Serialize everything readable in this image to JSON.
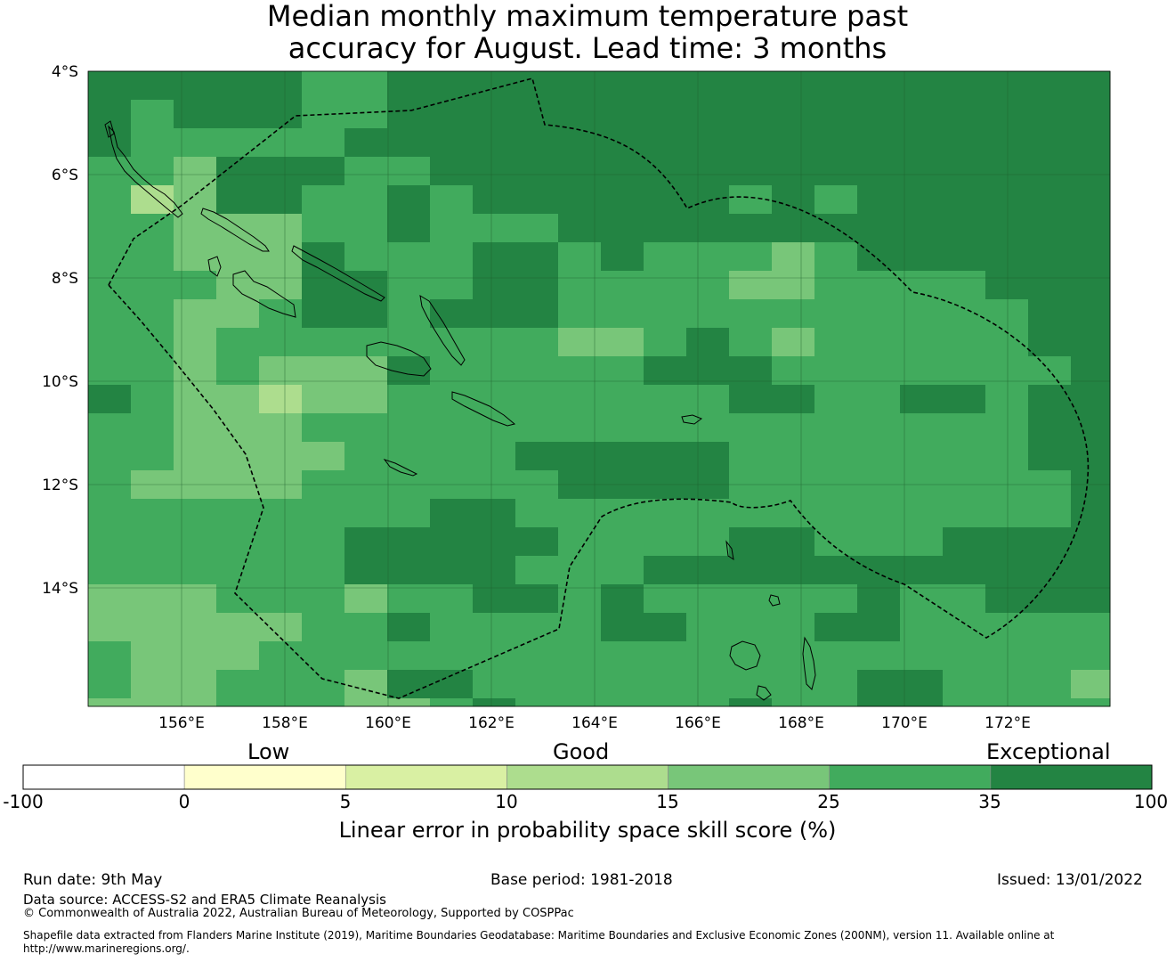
{
  "title_line1": "Median monthly maximum temperature past",
  "title_line2": "accuracy for August. Lead time: 3 months",
  "map": {
    "lon_range": [
      154.2,
      174.0
    ],
    "lat_range": [
      -16.3,
      -4.0
    ],
    "cell_size_deg": 0.83,
    "lat_ticks": [
      "4°S",
      "6°S",
      "8°S",
      "10°S",
      "12°S",
      "14°S"
    ],
    "lon_ticks": [
      "156°E",
      "158°E",
      "160°E",
      "162°E",
      "164°E",
      "166°E",
      "168°E",
      "170°E",
      "172°E"
    ],
    "grid_lines": true,
    "eez_boundary": "dashed",
    "coastlines": "thin black",
    "skill_grid_legend": "0=5-10 light, 1=10-15, 2=15-25, 3=25-35, 4=35-100",
    "skill_grid": [
      "444443344444444444444444",
      "434443344444444444444444",
      "433333444444444444444444",
      "332444334444444444444444",
      "312443343444444343444444",
      "332223343334444444444444",
      "332224333443433323444444",
      "333224433443333223333444",
      "332234434443333333333344",
      "332333333332234323333344",
      "332322243333344433333334",
      "432212233333333443344344",
      "332223333333333333333344",
      "332222333344444333333344",
      "322223333334444333333334",
      "333333334433333333333334",
      "333333444443333443334444",
      "333333444433344444444444",
      "222333233443433333433444",
      "222223343333443334433333",
      "322233333333333333333333",
      "322333244333333333443332",
      "222333223433333433443333",
      "222233333333333303343333"
    ]
  },
  "colorbar": {
    "category_low": "Low",
    "category_good": "Good",
    "category_exceptional": "Exceptional",
    "ticks": [
      "-100",
      "0",
      "5",
      "10",
      "15",
      "25",
      "35",
      "100"
    ],
    "colors": [
      "#ffffff",
      "#ffffcc",
      "#d9f0a3",
      "#addd8e",
      "#78c679",
      "#41ab5d",
      "#238443"
    ],
    "title": "Linear error in probability space skill score (%)"
  },
  "footer": {
    "run_date": "Run date: 9th May",
    "base_period": "Base period: 1981-2018",
    "issued": "Issued: 13/01/2022",
    "data_source": "Data source: ACCESS-S2 and ERA5 Climate Reanalysis",
    "copyright": "© Commonwealth of Australia 2022, Australian Bureau of Meteorology, Supported by COSPPac",
    "shapefile_line1": "Shapefile data extracted from Flanders Marine Institute (2019), Maritime Boundaries Geodatabase: Maritime Boundaries and Exclusive Economic Zones (200NM), version 11. Available online at",
    "shapefile_line2": "http://www.marineregions.org/."
  }
}
